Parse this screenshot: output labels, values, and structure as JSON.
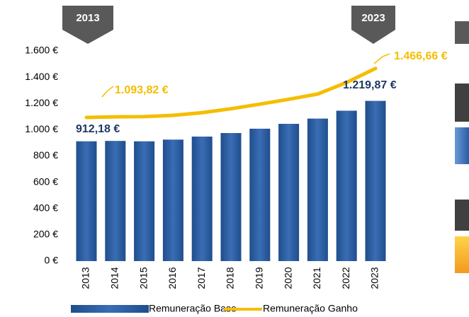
{
  "chart_data": {
    "type": "bar",
    "categories": [
      "2013",
      "2014",
      "2015",
      "2016",
      "2017",
      "2018",
      "2019",
      "2020",
      "2021",
      "2022",
      "2023"
    ],
    "series": [
      {
        "name": "Remuneração Base",
        "type": "bar",
        "color": "#2b5ca4",
        "values": [
          912.18,
          915,
          912,
          925,
          948,
          975,
          1008,
          1045,
          1085,
          1145,
          1219.87
        ],
        "value_labels": [
          "912,18 €",
          null,
          null,
          null,
          null,
          null,
          null,
          null,
          null,
          null,
          "1.219,87 €"
        ]
      },
      {
        "name": "Remuneração Ganho",
        "type": "line",
        "color": "#f5bd00",
        "values": [
          1093.82,
          1098,
          1100,
          1110,
          1130,
          1160,
          1195,
          1232,
          1272,
          1360,
          1466.66
        ],
        "value_labels": [
          "1.093,82 €",
          null,
          null,
          null,
          null,
          null,
          null,
          null,
          null,
          null,
          "1.466,66 €"
        ]
      }
    ],
    "annotations": [
      "2013",
      "2023"
    ],
    "ylim": [
      0,
      1600
    ],
    "yticks": [
      {
        "value": 0,
        "label": "0 €"
      },
      {
        "value": 200,
        "label": "200 €"
      },
      {
        "value": 400,
        "label": "400 €"
      },
      {
        "value": 600,
        "label": "600 €"
      },
      {
        "value": 800,
        "label": "800 €"
      },
      {
        "value": 1000,
        "label": "1.000 €"
      },
      {
        "value": 1200,
        "label": "1.200 €"
      },
      {
        "value": 1400,
        "label": "1.400 €"
      },
      {
        "value": 1600,
        "label": "1.600 €"
      }
    ],
    "grid": false,
    "legend": "bottom"
  }
}
